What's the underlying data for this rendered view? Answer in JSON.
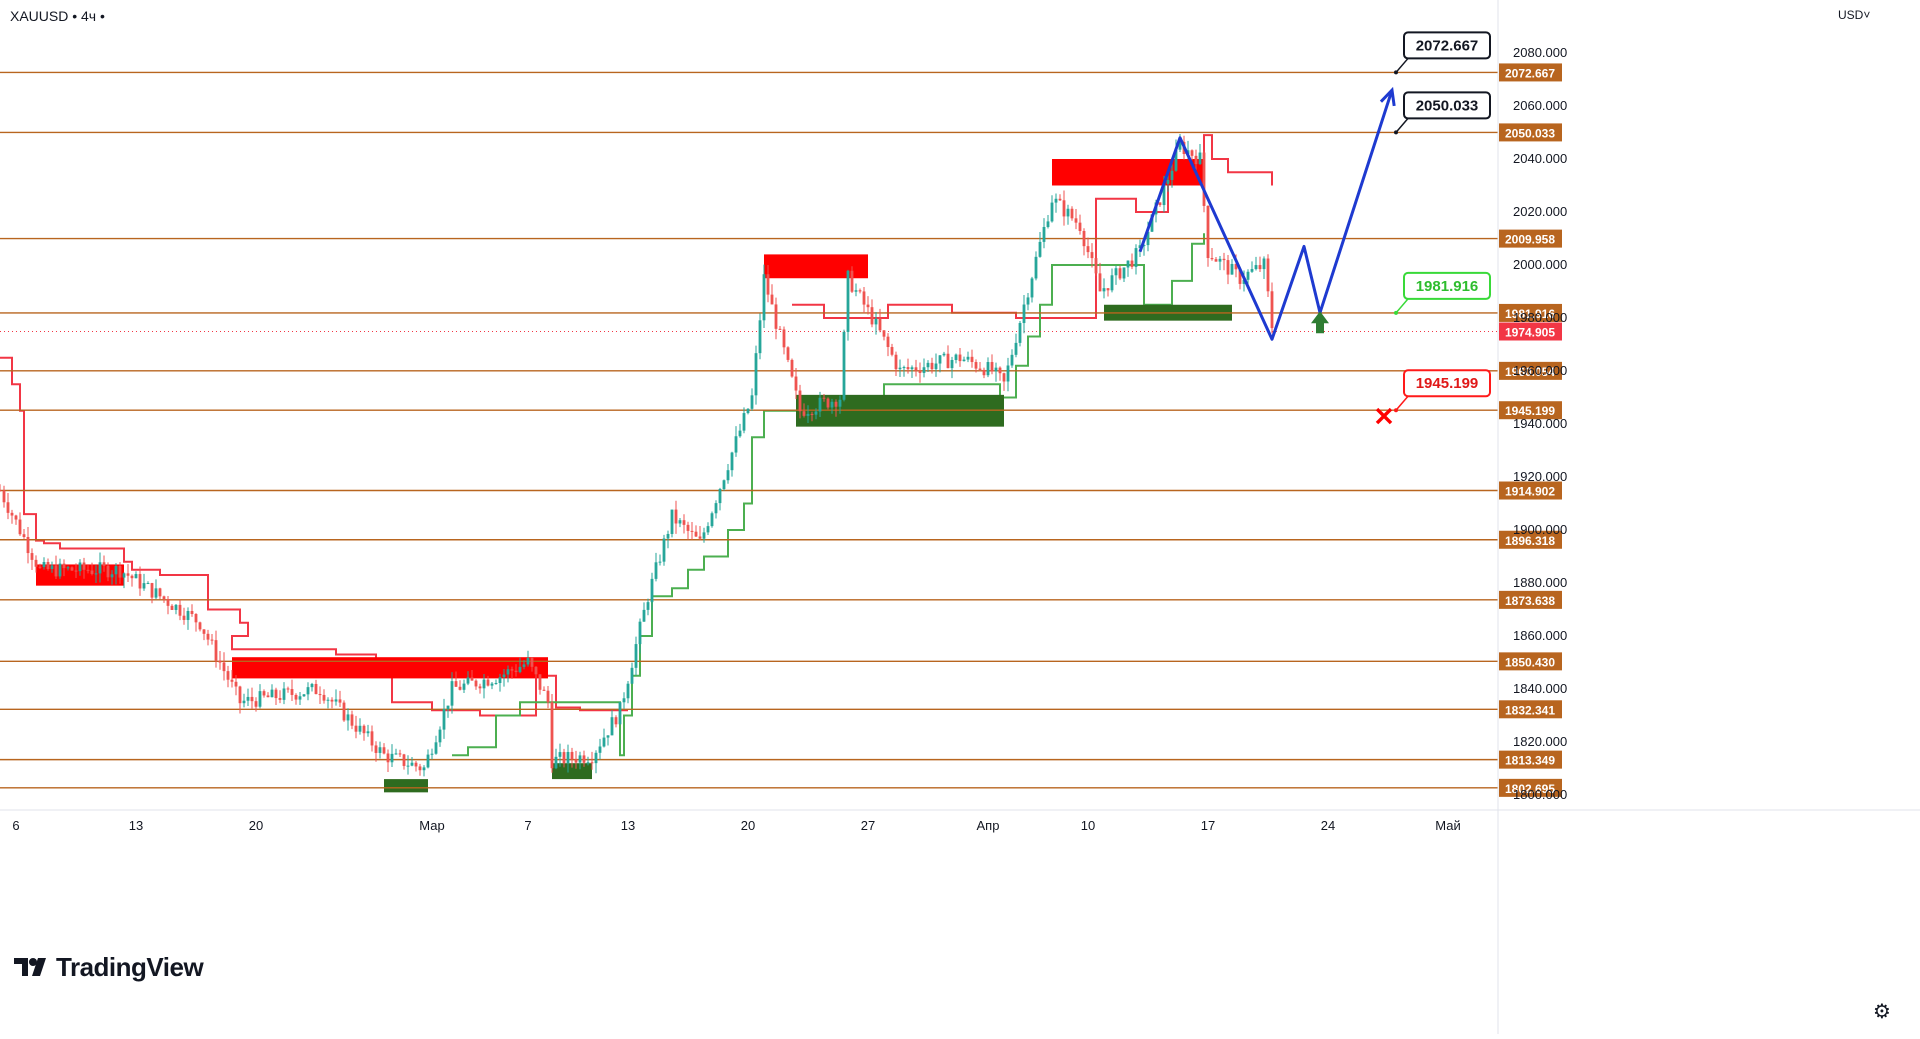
{
  "header": {
    "symbol": "XAUUSD • 4ч •",
    "currency": "USD˅"
  },
  "branding": {
    "logo_text": "TradingView"
  },
  "icons": {
    "settings": "gear-icon",
    "logo": "tradingview-logo-icon",
    "up_arrow": "up-arrow-icon",
    "cross": "cross-icon"
  },
  "colors": {
    "level": "#b8651f",
    "resistance": "#ff0000",
    "support": "#2e6b1f",
    "forecast": "#1e3ad0",
    "trail_red": "#f23645",
    "trail_green": "#4caf50",
    "up": "#26a69a",
    "down": "#ef5350"
  },
  "chart_data": {
    "type": "candlestick",
    "y_axis": {
      "min": 1800,
      "max": 2080,
      "ticks": [
        1800,
        1820,
        1840,
        1860,
        1880,
        1900,
        1920,
        1940,
        1960,
        1980,
        2000,
        2020,
        2040,
        2060,
        2080
      ]
    },
    "y_tick_labels": [
      "1800.000",
      "1820.000",
      "1840.000",
      "1860.000",
      "1880.000",
      "1900.000",
      "1920.000",
      "1940.000",
      "1960.000",
      "1980.000",
      "2000.000",
      "2020.000",
      "2040.000",
      "2060.000",
      "2080.000"
    ],
    "x_axis": {
      "labels": [
        {
          "i": 4,
          "label": "6"
        },
        {
          "i": 34,
          "label": "13"
        },
        {
          "i": 64,
          "label": "20"
        },
        {
          "i": 108,
          "label": "Мар"
        },
        {
          "i": 132,
          "label": "7"
        },
        {
          "i": 157,
          "label": "13"
        },
        {
          "i": 187,
          "label": "20"
        },
        {
          "i": 217,
          "label": "27"
        },
        {
          "i": 247,
          "label": "Апр"
        },
        {
          "i": 272,
          "label": "10"
        },
        {
          "i": 302,
          "label": "17"
        },
        {
          "i": 332,
          "label": "24"
        },
        {
          "i": 362,
          "label": "Май"
        }
      ]
    },
    "levels": [
      {
        "value": 2072.667,
        "label": "2072.667"
      },
      {
        "value": 2050.033,
        "label": "2050.033"
      },
      {
        "value": 2009.958,
        "label": "2009.958"
      },
      {
        "value": 1981.916,
        "label": "1981.916"
      },
      {
        "value": 1960.054,
        "label": "1960.054"
      },
      {
        "value": 1945.199,
        "label": "1945.199"
      },
      {
        "value": 1914.902,
        "label": "1914.902"
      },
      {
        "value": 1896.318,
        "label": "1896.318"
      },
      {
        "value": 1873.638,
        "label": "1873.638"
      },
      {
        "value": 1850.43,
        "label": "1850.430"
      },
      {
        "value": 1832.341,
        "label": "1832.341"
      },
      {
        "value": 1813.349,
        "label": "1813.349"
      },
      {
        "value": 1802.695,
        "label": "1802.695"
      }
    ],
    "current_price": {
      "value": 1974.905,
      "label": "1974.905"
    },
    "callouts": [
      {
        "label": "2072.667",
        "value": 2072.667,
        "style": "black"
      },
      {
        "label": "2050.033",
        "value": 2050.033,
        "style": "black"
      },
      {
        "label": "1981.916",
        "value": 1981.916,
        "style": "green"
      },
      {
        "label": "1945.199",
        "value": 1945.199,
        "style": "red"
      }
    ],
    "zones": [
      {
        "type": "resistance",
        "i0": 9,
        "i1": 31,
        "top": 1887,
        "bottom": 1879
      },
      {
        "type": "resistance",
        "i0": 58,
        "i1": 137,
        "top": 1852,
        "bottom": 1844
      },
      {
        "type": "support",
        "i0": 96,
        "i1": 107,
        "top": 1806,
        "bottom": 1801
      },
      {
        "type": "support",
        "i0": 138,
        "i1": 148,
        "top": 1812,
        "bottom": 1806
      },
      {
        "type": "resistance",
        "i0": 191,
        "i1": 217,
        "top": 2004,
        "bottom": 1995
      },
      {
        "type": "support",
        "i0": 199,
        "i1": 251,
        "top": 1951,
        "bottom": 1939
      },
      {
        "type": "resistance",
        "i0": 263,
        "i1": 301,
        "top": 2040,
        "bottom": 2030
      },
      {
        "type": "support",
        "i0": 276,
        "i1": 308,
        "top": 1985,
        "bottom": 1979
      }
    ],
    "forecast_path": [
      {
        "i": 285,
        "v": 2005
      },
      {
        "i": 295,
        "v": 2048
      },
      {
        "i": 318,
        "v": 1972
      },
      {
        "i": 326,
        "v": 2007
      },
      {
        "i": 330,
        "v": 1982
      },
      {
        "i": 348,
        "v": 2066
      }
    ],
    "trail_down": [
      [
        0,
        1965
      ],
      [
        3,
        1955
      ],
      [
        5,
        1950
      ],
      [
        5,
        1945
      ],
      [
        6,
        1912
      ],
      [
        6,
        1906
      ],
      [
        9,
        1896
      ],
      [
        11,
        1895
      ],
      [
        15,
        1893
      ],
      [
        31,
        1891
      ],
      [
        31,
        1888
      ],
      [
        33,
        1885
      ],
      [
        40,
        1883
      ],
      [
        52,
        1877
      ],
      [
        52,
        1870
      ],
      [
        60,
        1865
      ],
      [
        62,
        1860
      ],
      [
        58,
        1855
      ],
      [
        74,
        1855
      ],
      [
        84,
        1853
      ],
      [
        94,
        1845
      ],
      [
        98,
        1835
      ],
      [
        108,
        1832
      ],
      [
        120,
        1830
      ],
      [
        134,
        1845
      ],
      [
        139,
        1833
      ],
      [
        145,
        1832
      ],
      [
        157,
        1832
      ]
    ],
    "trail_up": [
      [
        113,
        1815
      ],
      [
        117,
        1818
      ],
      [
        124,
        1830
      ],
      [
        130,
        1835
      ],
      [
        137,
        1835
      ],
      [
        155,
        1815
      ],
      [
        156,
        1830
      ],
      [
        158,
        1845
      ],
      [
        160,
        1860
      ],
      [
        163,
        1875
      ],
      [
        168,
        1878
      ],
      [
        172,
        1885
      ],
      [
        176,
        1890
      ],
      [
        182,
        1900
      ],
      [
        186,
        1910
      ],
      [
        188,
        1935
      ],
      [
        191,
        1945
      ],
      [
        206,
        1945
      ],
      [
        211,
        1940
      ],
      [
        216,
        1950
      ],
      [
        221,
        1955
      ],
      [
        250,
        1950
      ],
      [
        254,
        1962
      ],
      [
        257,
        1973
      ],
      [
        260,
        1985
      ],
      [
        263,
        2000
      ],
      [
        272,
        2000
      ],
      [
        286,
        1985
      ],
      [
        293,
        1994
      ],
      [
        298,
        2008
      ],
      [
        301,
        2012
      ]
    ],
    "trail_down_2": [
      [
        198,
        1985
      ],
      [
        206,
        1980
      ],
      [
        222,
        1985
      ],
      [
        238,
        1982
      ],
      [
        254,
        1980
      ],
      [
        274,
        2025
      ],
      [
        284,
        2020
      ],
      [
        292,
        2035
      ],
      [
        301,
        2049
      ],
      [
        303,
        2040
      ],
      [
        307,
        2035
      ],
      [
        318,
        2030
      ]
    ]
  }
}
